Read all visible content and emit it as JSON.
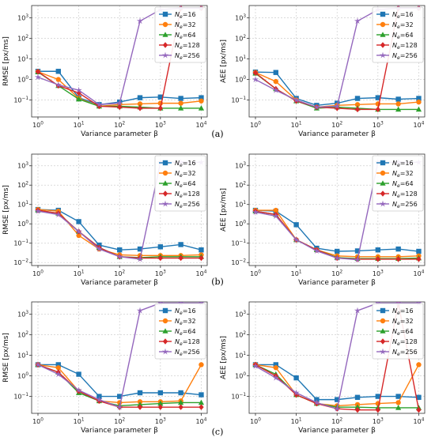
{
  "captions": [
    "(a)",
    "(b)",
    "(c)"
  ],
  "chart_data": [
    {
      "type": "line",
      "panel": "(a)",
      "side": "left",
      "ylabel": "RMSE [px/ms]",
      "xlabel": "Variance parameter β",
      "x_scale": "log",
      "y_scale": "log",
      "xlim": [
        0.7,
        14000
      ],
      "ylim": [
        0.015,
        4000
      ],
      "x_ticks": [
        {
          "value": 1,
          "base": "10",
          "exp": "0"
        },
        {
          "value": 10,
          "base": "10",
          "exp": "1"
        },
        {
          "value": 100,
          "base": "10",
          "exp": "2"
        },
        {
          "value": 1000,
          "base": "10",
          "exp": "3"
        },
        {
          "value": 10000,
          "base": "10",
          "exp": "4"
        }
      ],
      "y_ticks": [
        {
          "value": 0.1,
          "base": "10",
          "exp": "−1"
        },
        {
          "value": 1,
          "base": "10",
          "exp": "0"
        },
        {
          "value": 10,
          "base": "10",
          "exp": "1"
        },
        {
          "value": 100,
          "base": "10",
          "exp": "2"
        },
        {
          "value": 1000,
          "base": "10",
          "exp": "3"
        }
      ],
      "grid": true,
      "legend_position": "top-right",
      "x": [
        1,
        3.16,
        10,
        31.6,
        100,
        316,
        1000,
        3160,
        10000
      ],
      "series": [
        {
          "name_sym": "N",
          "name_sub": "e",
          "name_rest": "=16",
          "color": "#1f77b4",
          "marker": "square",
          "values": [
            2.5,
            2.5,
            0.13,
            0.06,
            0.08,
            0.13,
            0.14,
            0.12,
            0.13
          ]
        },
        {
          "name_sym": "N",
          "name_sub": "e",
          "name_rest": "=32",
          "color": "#ff7f0e",
          "marker": "circle",
          "values": [
            2.4,
            1.0,
            0.12,
            0.05,
            0.06,
            0.065,
            0.07,
            0.07,
            0.09
          ]
        },
        {
          "name_sym": "N",
          "name_sub": "e",
          "name_rest": "=64",
          "color": "#2ca02c",
          "marker": "triangle",
          "values": [
            2.3,
            0.5,
            0.11,
            0.05,
            0.05,
            0.045,
            0.04,
            0.04,
            0.04
          ]
        },
        {
          "name_sym": "N",
          "name_sub": "e",
          "name_rest": "=128",
          "color": "#d62728",
          "marker": "diamond",
          "values": [
            2.4,
            0.5,
            0.22,
            0.05,
            0.045,
            0.04,
            0.04,
            3000,
            3000
          ]
        },
        {
          "name_sym": "N",
          "name_sub": "e",
          "name_rest": "=256",
          "color": "#9467bd",
          "marker": "star",
          "values": [
            1.3,
            0.55,
            0.3,
            0.06,
            0.07,
            700,
            2500,
            3000,
            3000
          ]
        }
      ]
    },
    {
      "type": "line",
      "panel": "(a)",
      "side": "right",
      "ylabel": "AEE [px/ms]",
      "xlabel": "Variance parameter β",
      "x_scale": "log",
      "y_scale": "log",
      "xlim": [
        0.7,
        14000
      ],
      "ylim": [
        0.015,
        4000
      ],
      "x_ticks": [
        {
          "value": 1,
          "base": "10",
          "exp": "0"
        },
        {
          "value": 10,
          "base": "10",
          "exp": "1"
        },
        {
          "value": 100,
          "base": "10",
          "exp": "2"
        },
        {
          "value": 1000,
          "base": "10",
          "exp": "3"
        },
        {
          "value": 10000,
          "base": "10",
          "exp": "4"
        }
      ],
      "y_ticks": [
        {
          "value": 0.1,
          "base": "10",
          "exp": "−1"
        },
        {
          "value": 1,
          "base": "10",
          "exp": "0"
        },
        {
          "value": 10,
          "base": "10",
          "exp": "1"
        },
        {
          "value": 100,
          "base": "10",
          "exp": "2"
        },
        {
          "value": 1000,
          "base": "10",
          "exp": "3"
        }
      ],
      "grid": true,
      "legend_position": "top-right",
      "x": [
        1,
        3.16,
        10,
        31.6,
        100,
        316,
        1000,
        3160,
        10000
      ],
      "series": [
        {
          "name_sym": "N",
          "name_sub": "e",
          "name_rest": "=16",
          "color": "#1f77b4",
          "marker": "square",
          "values": [
            2.3,
            2.2,
            0.12,
            0.055,
            0.07,
            0.12,
            0.13,
            0.11,
            0.12
          ]
        },
        {
          "name_sym": "N",
          "name_sub": "e",
          "name_rest": "=32",
          "color": "#ff7f0e",
          "marker": "circle",
          "values": [
            2.2,
            0.8,
            0.1,
            0.045,
            0.055,
            0.06,
            0.065,
            0.065,
            0.08
          ]
        },
        {
          "name_sym": "N",
          "name_sub": "e",
          "name_rest": "=64",
          "color": "#2ca02c",
          "marker": "triangle",
          "values": [
            2.0,
            0.35,
            0.09,
            0.04,
            0.045,
            0.04,
            0.035,
            0.035,
            0.035
          ]
        },
        {
          "name_sym": "N",
          "name_sub": "e",
          "name_rest": "=128",
          "color": "#d62728",
          "marker": "diamond",
          "values": [
            2.1,
            0.35,
            0.09,
            0.045,
            0.04,
            0.035,
            0.035,
            3000,
            3000
          ]
        },
        {
          "name_sym": "N",
          "name_sub": "e",
          "name_rest": "=256",
          "color": "#9467bd",
          "marker": "star",
          "values": [
            1.0,
            0.3,
            0.1,
            0.045,
            0.05,
            700,
            2500,
            3000,
            3000
          ]
        }
      ]
    },
    {
      "type": "line",
      "panel": "(b)",
      "side": "left",
      "ylabel": "RMSE [px/ms]",
      "xlabel": "Variance parameter β",
      "x_scale": "log",
      "y_scale": "log",
      "xlim": [
        0.7,
        14000
      ],
      "ylim": [
        0.007,
        4000
      ],
      "x_ticks": [
        {
          "value": 1,
          "base": "10",
          "exp": "0"
        },
        {
          "value": 10,
          "base": "10",
          "exp": "1"
        },
        {
          "value": 100,
          "base": "10",
          "exp": "2"
        },
        {
          "value": 1000,
          "base": "10",
          "exp": "3"
        },
        {
          "value": 10000,
          "base": "10",
          "exp": "4"
        }
      ],
      "y_ticks": [
        {
          "value": 0.01,
          "base": "10",
          "exp": "−2"
        },
        {
          "value": 0.1,
          "base": "10",
          "exp": "−1"
        },
        {
          "value": 1,
          "base": "10",
          "exp": "0"
        },
        {
          "value": 10,
          "base": "10",
          "exp": "1"
        },
        {
          "value": 100,
          "base": "10",
          "exp": "2"
        },
        {
          "value": 1000,
          "base": "10",
          "exp": "3"
        }
      ],
      "grid": true,
      "legend_position": "top-right",
      "x": [
        1,
        3.16,
        10,
        31.6,
        100,
        316,
        1000,
        3160,
        10000
      ],
      "series": [
        {
          "name_sym": "N",
          "name_sub": "e",
          "name_rest": "=16",
          "color": "#1f77b4",
          "marker": "square",
          "values": [
            5.5,
            5.0,
            1.3,
            0.08,
            0.045,
            0.05,
            0.065,
            0.085,
            0.045
          ]
        },
        {
          "name_sym": "N",
          "name_sub": "e",
          "name_rest": "=32",
          "color": "#ff7f0e",
          "marker": "circle",
          "values": [
            5.5,
            4.5,
            0.25,
            0.05,
            0.025,
            0.023,
            0.023,
            0.023,
            0.025
          ]
        },
        {
          "name_sym": "N",
          "name_sub": "e",
          "name_rest": "=64",
          "color": "#2ca02c",
          "marker": "triangle",
          "values": [
            5.0,
            3.5,
            0.4,
            0.06,
            0.02,
            0.018,
            0.02,
            0.02,
            0.02
          ]
        },
        {
          "name_sym": "N",
          "name_sub": "e",
          "name_rest": "=128",
          "color": "#d62728",
          "marker": "diamond",
          "values": [
            5.0,
            3.5,
            0.4,
            0.06,
            0.02,
            0.017,
            0.017,
            0.017,
            0.017
          ]
        },
        {
          "name_sym": "N",
          "name_sub": "e",
          "name_rest": "=256",
          "color": "#9467bd",
          "marker": "star",
          "values": [
            4.5,
            3.0,
            0.4,
            0.05,
            0.02,
            0.015,
            1500,
            1500,
            1500
          ]
        }
      ]
    },
    {
      "type": "line",
      "panel": "(b)",
      "side": "right",
      "ylabel": "AEE [px/ms]",
      "xlabel": "Variance parameter β",
      "x_scale": "log",
      "y_scale": "log",
      "xlim": [
        0.7,
        14000
      ],
      "ylim": [
        0.007,
        4000
      ],
      "x_ticks": [
        {
          "value": 1,
          "base": "10",
          "exp": "0"
        },
        {
          "value": 10,
          "base": "10",
          "exp": "1"
        },
        {
          "value": 100,
          "base": "10",
          "exp": "2"
        },
        {
          "value": 1000,
          "base": "10",
          "exp": "3"
        },
        {
          "value": 10000,
          "base": "10",
          "exp": "4"
        }
      ],
      "y_ticks": [
        {
          "value": 0.01,
          "base": "10",
          "exp": "−2"
        },
        {
          "value": 0.1,
          "base": "10",
          "exp": "−1"
        },
        {
          "value": 1,
          "base": "10",
          "exp": "0"
        },
        {
          "value": 10,
          "base": "10",
          "exp": "1"
        },
        {
          "value": 100,
          "base": "10",
          "exp": "2"
        },
        {
          "value": 1000,
          "base": "10",
          "exp": "3"
        }
      ],
      "grid": true,
      "legend_position": "top-right",
      "x": [
        1,
        3.16,
        10,
        31.6,
        100,
        316,
        1000,
        3160,
        10000
      ],
      "series": [
        {
          "name_sym": "N",
          "name_sub": "e",
          "name_rest": "=16",
          "color": "#1f77b4",
          "marker": "square",
          "values": [
            5.0,
            4.5,
            0.9,
            0.055,
            0.038,
            0.04,
            0.045,
            0.05,
            0.038
          ]
        },
        {
          "name_sym": "N",
          "name_sub": "e",
          "name_rest": "=32",
          "color": "#ff7f0e",
          "marker": "circle",
          "values": [
            5.0,
            5.0,
            0.15,
            0.045,
            0.022,
            0.02,
            0.02,
            0.02,
            0.022
          ]
        },
        {
          "name_sym": "N",
          "name_sub": "e",
          "name_rest": "=64",
          "color": "#2ca02c",
          "marker": "triangle",
          "values": [
            4.5,
            3.0,
            0.15,
            0.045,
            0.018,
            0.016,
            0.016,
            0.016,
            0.017
          ]
        },
        {
          "name_sym": "N",
          "name_sub": "e",
          "name_rest": "=128",
          "color": "#d62728",
          "marker": "diamond",
          "values": [
            4.5,
            3.0,
            0.15,
            0.045,
            0.017,
            0.015,
            0.015,
            0.015,
            0.015
          ]
        },
        {
          "name_sym": "N",
          "name_sub": "e",
          "name_rest": "=256",
          "color": "#9467bd",
          "marker": "star",
          "values": [
            4.0,
            2.5,
            0.15,
            0.04,
            0.017,
            0.014,
            1500,
            1500,
            1500
          ]
        }
      ]
    },
    {
      "type": "line",
      "panel": "(c)",
      "side": "left",
      "ylabel": "RMSE [px/ms]",
      "xlabel": "Variance parameter β",
      "x_scale": "log",
      "y_scale": "log",
      "xlim": [
        0.7,
        14000
      ],
      "ylim": [
        0.015,
        4000
      ],
      "x_ticks": [
        {
          "value": 1,
          "base": "10",
          "exp": "0"
        },
        {
          "value": 10,
          "base": "10",
          "exp": "1"
        },
        {
          "value": 100,
          "base": "10",
          "exp": "2"
        },
        {
          "value": 1000,
          "base": "10",
          "exp": "3"
        },
        {
          "value": 10000,
          "base": "10",
          "exp": "4"
        }
      ],
      "y_ticks": [
        {
          "value": 0.1,
          "base": "10",
          "exp": "−1"
        },
        {
          "value": 1,
          "base": "10",
          "exp": "0"
        },
        {
          "value": 10,
          "base": "10",
          "exp": "1"
        },
        {
          "value": 100,
          "base": "10",
          "exp": "2"
        },
        {
          "value": 1000,
          "base": "10",
          "exp": "3"
        }
      ],
      "grid": true,
      "legend_position": "top-right",
      "x": [
        1,
        3.16,
        10,
        31.6,
        100,
        316,
        1000,
        3160,
        10000
      ],
      "series": [
        {
          "name_sym": "N",
          "name_sub": "e",
          "name_rest": "=16",
          "color": "#1f77b4",
          "marker": "square",
          "values": [
            3.5,
            3.5,
            1.2,
            0.1,
            0.1,
            0.15,
            0.15,
            0.15,
            0.12
          ]
        },
        {
          "name_sym": "N",
          "name_sub": "e",
          "name_rest": "=32",
          "color": "#ff7f0e",
          "marker": "circle",
          "values": [
            3.5,
            2.5,
            0.18,
            0.06,
            0.05,
            0.055,
            0.055,
            0.06,
            3.5
          ]
        },
        {
          "name_sym": "N",
          "name_sub": "e",
          "name_rest": "=64",
          "color": "#2ca02c",
          "marker": "triangle",
          "values": [
            3.5,
            1.5,
            0.15,
            0.06,
            0.035,
            0.04,
            0.045,
            0.05,
            0.05
          ]
        },
        {
          "name_sym": "N",
          "name_sub": "e",
          "name_rest": "=128",
          "color": "#d62728",
          "marker": "diamond",
          "values": [
            3.5,
            1.5,
            0.18,
            0.06,
            0.03,
            0.03,
            0.03,
            0.03,
            0.03
          ]
        },
        {
          "name_sym": "N",
          "name_sub": "e",
          "name_rest": "=256",
          "color": "#9467bd",
          "marker": "star",
          "values": [
            3.5,
            1.2,
            0.2,
            0.07,
            0.03,
            1500,
            3500,
            3500,
            3500
          ]
        }
      ]
    },
    {
      "type": "line",
      "panel": "(c)",
      "side": "right",
      "ylabel": "AEE [px/ms]",
      "xlabel": "Variance parameter β",
      "x_scale": "log",
      "y_scale": "log",
      "xlim": [
        0.7,
        14000
      ],
      "ylim": [
        0.015,
        4000
      ],
      "x_ticks": [
        {
          "value": 1,
          "base": "10",
          "exp": "0"
        },
        {
          "value": 10,
          "base": "10",
          "exp": "1"
        },
        {
          "value": 100,
          "base": "10",
          "exp": "2"
        },
        {
          "value": 1000,
          "base": "10",
          "exp": "3"
        },
        {
          "value": 10000,
          "base": "10",
          "exp": "4"
        }
      ],
      "y_ticks": [
        {
          "value": 0.1,
          "base": "10",
          "exp": "−1"
        },
        {
          "value": 1,
          "base": "10",
          "exp": "0"
        },
        {
          "value": 10,
          "base": "10",
          "exp": "1"
        },
        {
          "value": 100,
          "base": "10",
          "exp": "2"
        },
        {
          "value": 1000,
          "base": "10",
          "exp": "3"
        }
      ],
      "grid": true,
      "legend_position": "top-right",
      "x": [
        1,
        3.16,
        10,
        31.6,
        100,
        316,
        1000,
        3160,
        10000
      ],
      "series": [
        {
          "name_sym": "N",
          "name_sub": "e",
          "name_rest": "=16",
          "color": "#1f77b4",
          "marker": "square",
          "values": [
            3.5,
            3.5,
            0.8,
            0.07,
            0.07,
            0.09,
            0.1,
            0.1,
            0.09
          ]
        },
        {
          "name_sym": "N",
          "name_sub": "e",
          "name_rest": "=32",
          "color": "#ff7f0e",
          "marker": "circle",
          "values": [
            3.5,
            2.5,
            0.12,
            0.045,
            0.035,
            0.04,
            0.045,
            0.05,
            3.5
          ]
        },
        {
          "name_sym": "N",
          "name_sub": "e",
          "name_rest": "=64",
          "color": "#2ca02c",
          "marker": "triangle",
          "values": [
            3.5,
            1.2,
            0.12,
            0.045,
            0.03,
            0.03,
            0.028,
            0.028,
            0.028
          ]
        },
        {
          "name_sym": "N",
          "name_sub": "e",
          "name_rest": "=128",
          "color": "#d62728",
          "marker": "diamond",
          "values": [
            3.5,
            1.0,
            0.12,
            0.045,
            0.025,
            0.022,
            0.022,
            3500,
            0.022
          ]
        },
        {
          "name_sym": "N",
          "name_sub": "e",
          "name_rest": "=256",
          "color": "#9467bd",
          "marker": "star",
          "values": [
            3.0,
            0.8,
            0.15,
            0.05,
            0.025,
            1500,
            3500,
            3500,
            3500
          ]
        }
      ]
    }
  ]
}
